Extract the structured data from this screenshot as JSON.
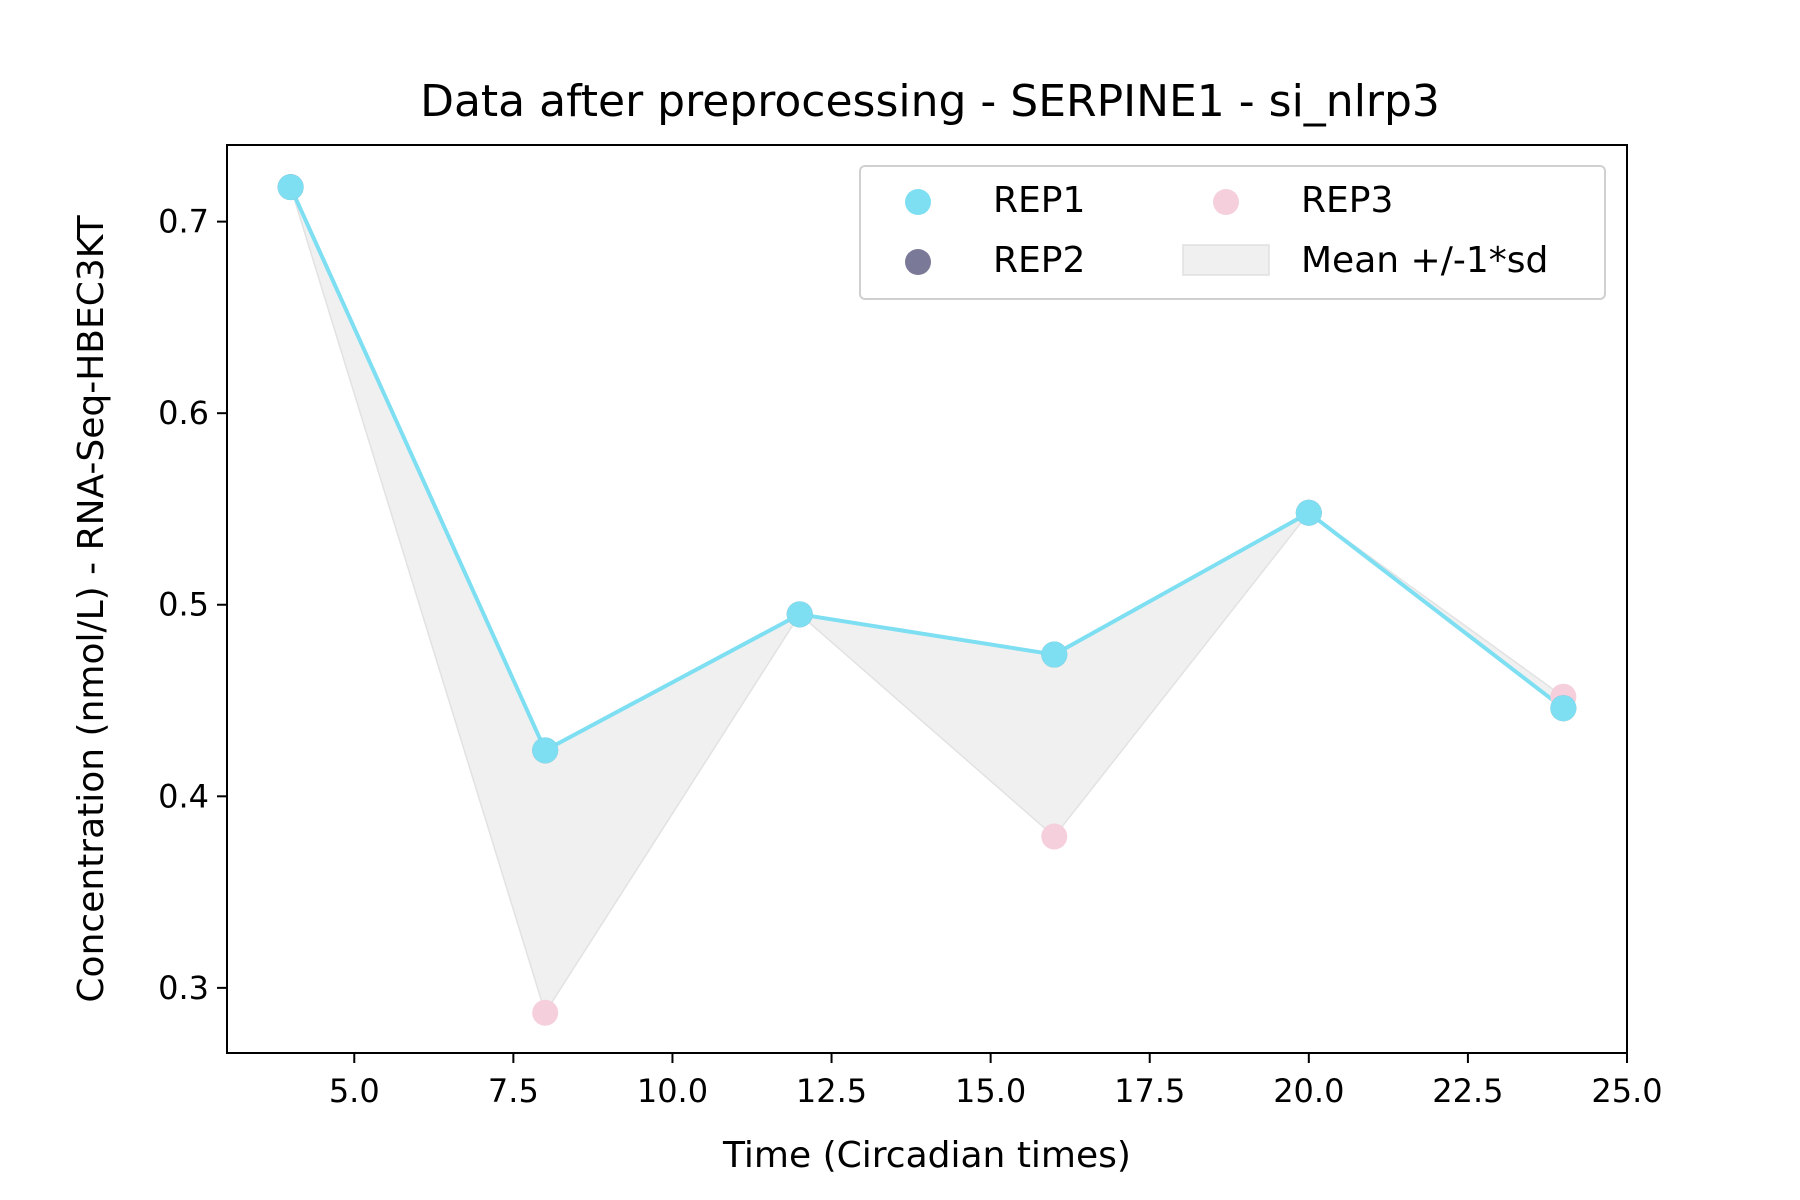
{
  "chart_data": {
    "type": "scatter",
    "title": "Data after preprocessing - SERPINE1 - si_nlrp3",
    "xlabel": "Time (Circadian times)",
    "ylabel": "Concentration (nmol/L) - RNA-Seq-HBEC3KT",
    "xlim": [
      3.0,
      25.0
    ],
    "ylim": [
      0.266,
      0.74
    ],
    "x_ticks": [
      5.0,
      7.5,
      10.0,
      12.5,
      15.0,
      17.5,
      20.0,
      22.5,
      25.0
    ],
    "x_tick_labels": [
      "5.0",
      "7.5",
      "10.0",
      "12.5",
      "15.0",
      "17.5",
      "20.0",
      "22.5",
      "25.0"
    ],
    "y_ticks": [
      0.3,
      0.4,
      0.5,
      0.6,
      0.7
    ],
    "y_tick_labels": [
      "0.3",
      "0.4",
      "0.5",
      "0.6",
      "0.7"
    ],
    "grid": false,
    "legend_position": "top-right",
    "x": [
      4,
      8,
      12,
      16,
      20,
      24
    ],
    "series": [
      {
        "name": "REP1",
        "color": "#7ddff1",
        "values": [
          0.718,
          0.424,
          0.495,
          0.474,
          0.548,
          0.446
        ],
        "line": true
      },
      {
        "name": "REP2",
        "color": "#7a7a98",
        "values": [
          0.718,
          0.424,
          0.495,
          0.474,
          0.548,
          0.446
        ],
        "line": false
      },
      {
        "name": "REP3",
        "color": "#f6cfdc",
        "values": [
          0.718,
          0.287,
          0.495,
          0.379,
          0.548,
          0.452
        ],
        "line": false
      }
    ],
    "band": {
      "name": "Mean +/-1*sd",
      "color": "#f0f0f0",
      "lower": [
        0.718,
        0.287,
        0.495,
        0.379,
        0.548,
        0.446
      ],
      "upper": [
        0.718,
        0.424,
        0.495,
        0.474,
        0.548,
        0.452
      ]
    }
  }
}
